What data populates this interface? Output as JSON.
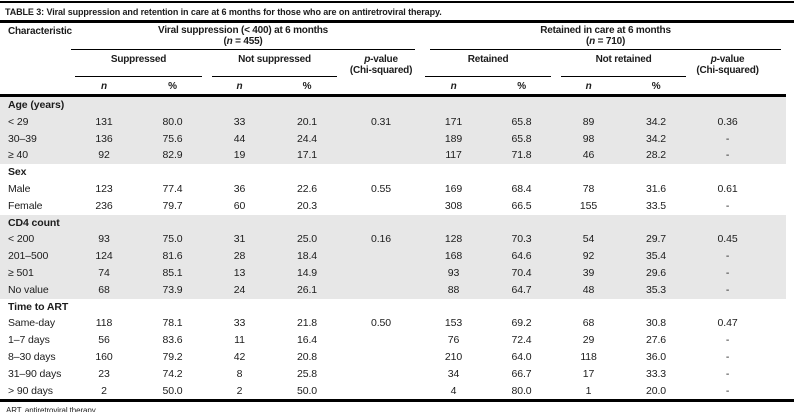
{
  "title": {
    "label": "TABLE 3:",
    "text": "Viral suppression and retention in care at 6 months for those who are on antiretroviral therapy."
  },
  "header": {
    "characteristic": "Characteristic",
    "group1": {
      "title": "Viral suppression (< 400) at 6 months",
      "n_open": "(",
      "n_symbol": "n",
      "n_rest": " = 455)"
    },
    "group2": {
      "title": "Retained in care at 6 months",
      "n_open": "(",
      "n_symbol": "n",
      "n_rest": " = 710)"
    },
    "sub": {
      "suppressed": "Suppressed",
      "not_suppressed": "Not suppressed",
      "retained": "Retained",
      "not_retained": "Not retained"
    },
    "pvalue": {
      "symbol": "p",
      "rest": "-value",
      "line2": "(Chi-squared)"
    },
    "cols": {
      "n": "n",
      "pct": "%"
    }
  },
  "sections": [
    {
      "name": "Age (years)",
      "shaded": true,
      "rows": [
        {
          "label": "< 29",
          "values": [
            "131",
            "80.0",
            "33",
            "20.1",
            "0.31",
            "171",
            "65.8",
            "89",
            "34.2",
            "0.36"
          ]
        },
        {
          "label": "30–39",
          "values": [
            "136",
            "75.6",
            "44",
            "24.4",
            "",
            "189",
            "65.8",
            "98",
            "34.2",
            "-"
          ]
        },
        {
          "label": "≥ 40",
          "values": [
            "92",
            "82.9",
            "19",
            "17.1",
            "",
            "117",
            "71.8",
            "46",
            "28.2",
            "-"
          ]
        }
      ]
    },
    {
      "name": "Sex",
      "shaded": false,
      "rows": [
        {
          "label": "Male",
          "values": [
            "123",
            "77.4",
            "36",
            "22.6",
            "0.55",
            "169",
            "68.4",
            "78",
            "31.6",
            "0.61"
          ]
        },
        {
          "label": "Female",
          "values": [
            "236",
            "79.7",
            "60",
            "20.3",
            "",
            "308",
            "66.5",
            "155",
            "33.5",
            "-"
          ]
        }
      ]
    },
    {
      "name": "CD4 count",
      "shaded": true,
      "rows": [
        {
          "label": "< 200",
          "values": [
            "93",
            "75.0",
            "31",
            "25.0",
            "0.16",
            "128",
            "70.3",
            "54",
            "29.7",
            "0.45"
          ]
        },
        {
          "label": "201–500",
          "values": [
            "124",
            "81.6",
            "28",
            "18.4",
            "",
            "168",
            "64.6",
            "92",
            "35.4",
            "-"
          ]
        },
        {
          "label": "≥ 501",
          "values": [
            "74",
            "85.1",
            "13",
            "14.9",
            "",
            "93",
            "70.4",
            "39",
            "29.6",
            "-"
          ]
        },
        {
          "label": "No value",
          "values": [
            "68",
            "73.9",
            "24",
            "26.1",
            "",
            "88",
            "64.7",
            "48",
            "35.3",
            "-"
          ]
        }
      ]
    },
    {
      "name": "Time to ART",
      "shaded": false,
      "rows": [
        {
          "label": "Same-day",
          "values": [
            "118",
            "78.1",
            "33",
            "21.8",
            "0.50",
            "153",
            "69.2",
            "68",
            "30.8",
            "0.47"
          ]
        },
        {
          "label": "1–7 days",
          "values": [
            "56",
            "83.6",
            "11",
            "16.4",
            "",
            "76",
            "72.4",
            "29",
            "27.6",
            "-"
          ]
        },
        {
          "label": "8–30 days",
          "values": [
            "160",
            "79.2",
            "42",
            "20.8",
            "",
            "210",
            "64.0",
            "118",
            "36.0",
            "-"
          ]
        },
        {
          "label": "31–90 days",
          "values": [
            "23",
            "74.2",
            "8",
            "25.8",
            "",
            "34",
            "66.7",
            "17",
            "33.3",
            "-"
          ]
        },
        {
          "label": "> 90 days",
          "values": [
            "2",
            "50.0",
            "2",
            "50.0",
            "",
            "4",
            "80.0",
            "1",
            "20.0",
            "-"
          ]
        }
      ]
    }
  ],
  "footnote": "ART, antiretroviral therapy.",
  "colors": {
    "band": "#e7e7e7",
    "text": "#1c1c1c",
    "rule": "#000000"
  }
}
